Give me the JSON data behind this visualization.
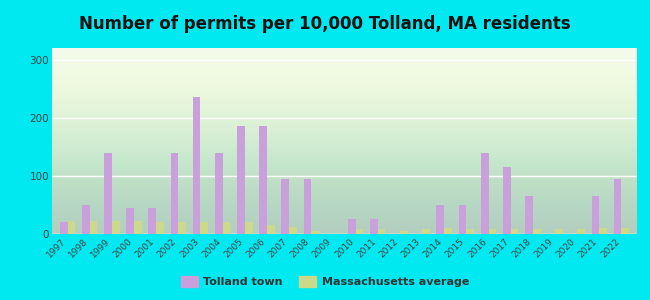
{
  "title": "Number of permits per 10,000 Tolland, MA residents",
  "years": [
    1997,
    1998,
    1999,
    2000,
    2001,
    2002,
    2003,
    2004,
    2005,
    2006,
    2007,
    2008,
    2009,
    2010,
    2011,
    2012,
    2013,
    2014,
    2015,
    2016,
    2017,
    2018,
    2019,
    2020,
    2021,
    2022
  ],
  "tolland": [
    20,
    50,
    140,
    45,
    45,
    140,
    235,
    140,
    185,
    185,
    95,
    95,
    0,
    25,
    25,
    0,
    0,
    50,
    50,
    140,
    115,
    65,
    0,
    0,
    65,
    95
  ],
  "ma_avg": [
    22,
    22,
    22,
    22,
    20,
    20,
    20,
    20,
    20,
    15,
    12,
    5,
    0,
    8,
    8,
    6,
    8,
    10,
    8,
    8,
    8,
    8,
    8,
    8,
    10,
    10
  ],
  "tolland_color": "#c9a0dc",
  "ma_avg_color": "#ccd98a",
  "background_outer": "#00e8f0",
  "background_plot_top": "#e8f5e0",
  "background_plot_bottom": "#ffffff",
  "ylim": [
    0,
    320
  ],
  "yticks": [
    0,
    100,
    200,
    300
  ],
  "bar_width": 0.35,
  "title_fontsize": 12,
  "legend_label_tolland": "Tolland town",
  "legend_label_ma": "Massachusetts average"
}
